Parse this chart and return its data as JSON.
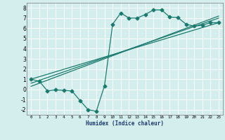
{
  "xlabel": "Humidex (Indice chaleur)",
  "background_color": "#d4eeee",
  "grid_color": "#ffffff",
  "line_color": "#1a7a6e",
  "xlim": [
    -0.5,
    23.5
  ],
  "ylim": [
    -2.5,
    8.5
  ],
  "xtick_labels": [
    "0",
    "1",
    "2",
    "3",
    "4",
    "5",
    "6",
    "7",
    "8",
    "9",
    "10",
    "11",
    "12",
    "13",
    "14",
    "15",
    "16",
    "17",
    "18",
    "19",
    "20",
    "21",
    "22",
    "23"
  ],
  "xtick_vals": [
    0,
    1,
    2,
    3,
    4,
    5,
    6,
    7,
    8,
    9,
    10,
    11,
    12,
    13,
    14,
    15,
    16,
    17,
    18,
    19,
    20,
    21,
    22,
    23
  ],
  "ytick_vals": [
    -2,
    -1,
    0,
    1,
    2,
    3,
    4,
    5,
    6,
    7,
    8
  ],
  "series1_x": [
    0,
    1,
    2,
    3,
    4,
    5,
    6,
    7,
    8,
    9,
    10,
    11,
    12,
    13,
    14,
    15,
    16,
    17,
    18,
    19,
    20,
    21,
    22,
    23
  ],
  "series1_y": [
    1.0,
    0.8,
    -0.15,
    -0.05,
    -0.1,
    -0.15,
    -1.1,
    -2.0,
    -2.15,
    0.35,
    6.4,
    7.5,
    7.0,
    7.0,
    7.35,
    7.8,
    7.8,
    7.1,
    7.05,
    6.4,
    6.2,
    6.3,
    6.55,
    6.55
  ],
  "series2_x": [
    0,
    23
  ],
  "series2_y": [
    1.0,
    6.55
  ],
  "series3_x": [
    0,
    23
  ],
  "series3_y": [
    0.6,
    7.0
  ],
  "series4_x": [
    0,
    23
  ],
  "series4_y": [
    0.3,
    7.2
  ],
  "markersize": 2.5
}
